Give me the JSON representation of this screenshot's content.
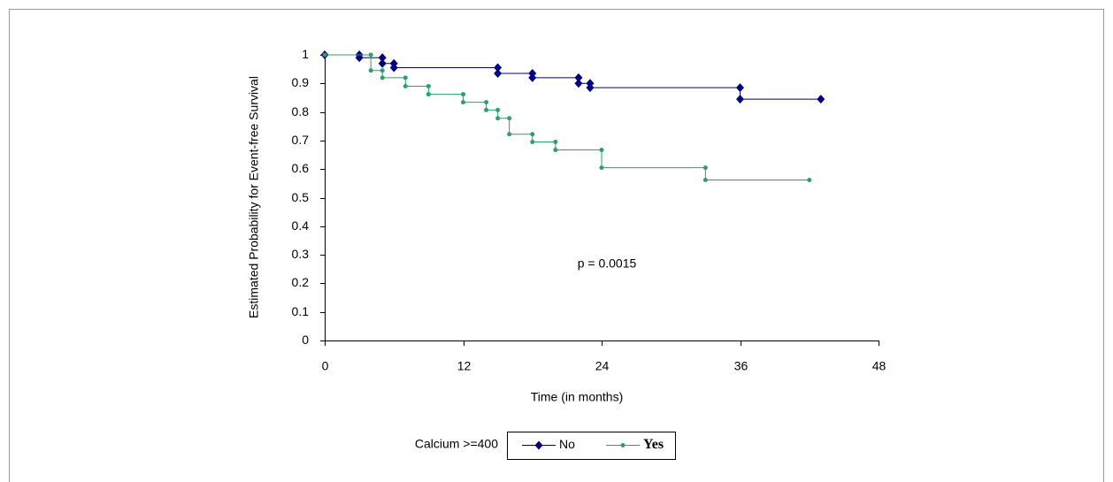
{
  "chart_data": {
    "type": "step-line",
    "y_label": "Estimated Probability for Event-free Survival",
    "x_label": "Time (in months)",
    "annotation": "p = 0.0015",
    "legend_title": "Calcium >=400",
    "xlim": [
      0,
      48
    ],
    "xticks": [
      0,
      12,
      24,
      36,
      48
    ],
    "ylim": [
      0,
      1
    ],
    "yticks": [
      0,
      0.1,
      0.2,
      0.3,
      0.4,
      0.5,
      0.6,
      0.7,
      0.8,
      0.9,
      1
    ],
    "grid": false,
    "series": [
      {
        "name": "No",
        "color": "#000080",
        "marker": "diamond",
        "x": [
          0,
          3,
          3,
          5,
          5,
          6,
          6,
          15,
          15,
          18,
          18,
          22,
          22,
          23,
          23,
          36,
          36,
          43
        ],
        "values": [
          1,
          1,
          0.99,
          0.99,
          0.97,
          0.97,
          0.955,
          0.955,
          0.935,
          0.935,
          0.92,
          0.92,
          0.9,
          0.9,
          0.885,
          0.885,
          0.845,
          0.845
        ]
      },
      {
        "name": "Yes",
        "color": "#2e9e6e",
        "marker": "circle",
        "x": [
          0,
          4,
          4,
          5,
          5,
          7,
          7,
          9,
          9,
          12,
          12,
          14,
          14,
          15,
          15,
          16,
          16,
          18,
          18,
          20,
          20,
          24,
          24,
          33,
          33,
          42
        ],
        "values": [
          1,
          1,
          0.945,
          0.945,
          0.92,
          0.92,
          0.89,
          0.89,
          0.862,
          0.862,
          0.834,
          0.834,
          0.807,
          0.807,
          0.778,
          0.778,
          0.722,
          0.722,
          0.695,
          0.695,
          0.667,
          0.667,
          0.605,
          0.605,
          0.562,
          0.562
        ]
      }
    ]
  }
}
